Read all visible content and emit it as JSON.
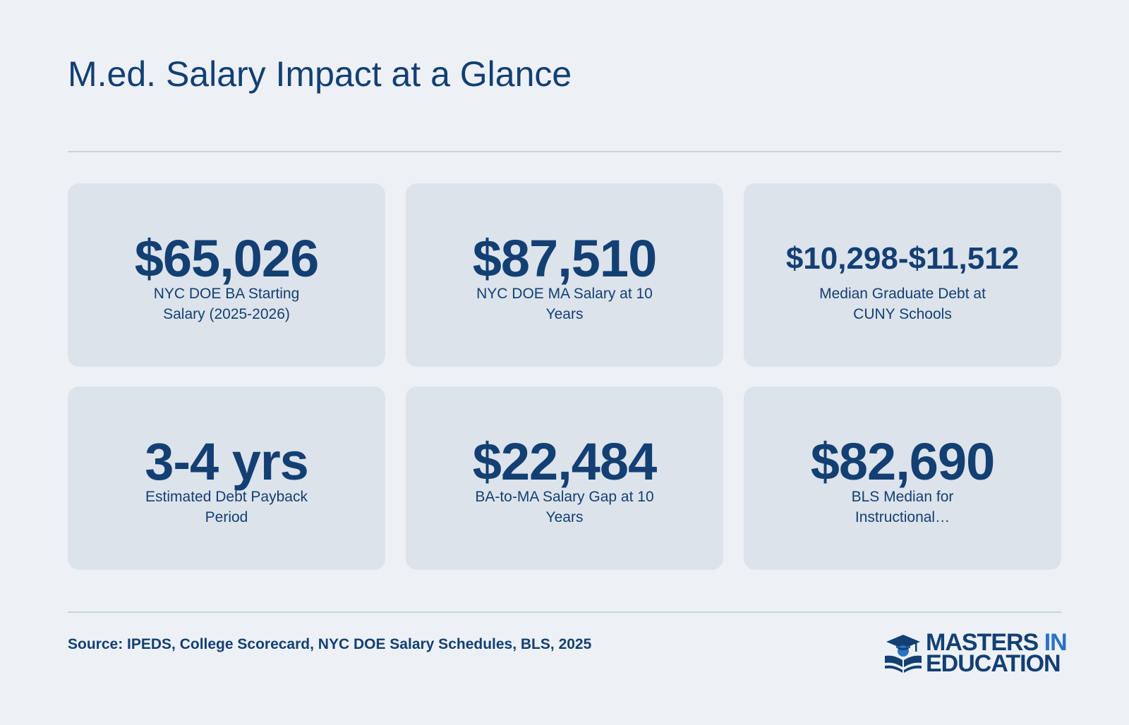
{
  "page": {
    "title": "M.ed. Salary Impact at a Glance"
  },
  "stats": [
    {
      "value": "$65,026",
      "label": "NYC DOE BA Starting Salary (2025-2026)"
    },
    {
      "value": "$87,510",
      "label": "NYC DOE MA Salary at 10 Years"
    },
    {
      "value": "$10,298-$11,512",
      "label": "Median Graduate Debt at CUNY Schools"
    },
    {
      "value": "3-4 yrs",
      "label": "Estimated Debt Payback Period"
    },
    {
      "value": "$22,484",
      "label": "BA-to-MA Salary Gap at 10 Years"
    },
    {
      "value": "$82,690",
      "label": "BLS Median for Instructional…"
    }
  ],
  "footer": {
    "source": "Source: IPEDS, College Scorecard, NYC DOE Salary Schedules, BLS, 2025",
    "brand_line1": "MASTERS",
    "brand_line1_accent": "IN",
    "brand_line2": "EDUCATION",
    "logo_icon": "graduation-cap-book-icon"
  },
  "colors": {
    "background": "#edf1f6",
    "card": "#dce3eb",
    "primary_text": "#133f73",
    "brand_accent": "#2a73c4",
    "divider": "#c8d3df"
  }
}
